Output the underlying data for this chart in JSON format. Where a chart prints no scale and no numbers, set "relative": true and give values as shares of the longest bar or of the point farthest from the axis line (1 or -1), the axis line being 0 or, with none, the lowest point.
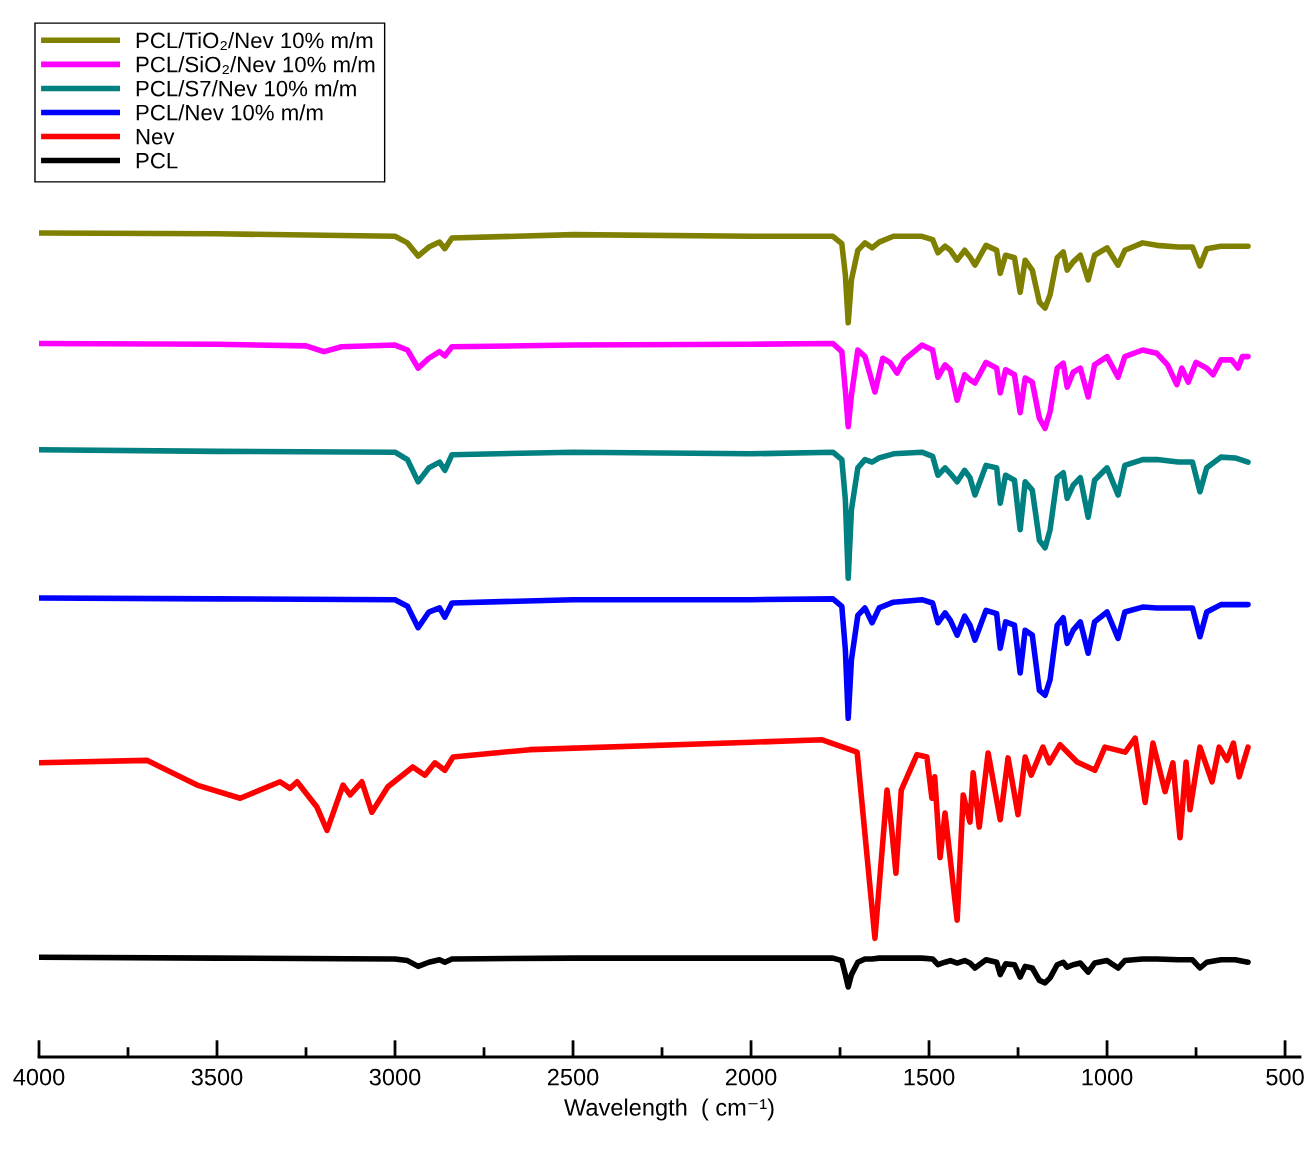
{
  "chart_data": {
    "type": "line",
    "relative": true,
    "xlabel": "Wavelength  ( cm⁻¹)",
    "legend": "top left",
    "grid": false,
    "marker": "none",
    "line_style": "solid",
    "xlim": [
      4000,
      458
    ],
    "xticks": [
      4000,
      {
        "value": 3750,
        "label": null
      },
      3500,
      {
        "value": 3250,
        "label": null
      },
      3000,
      {
        "value": 2750,
        "label": null
      },
      2500,
      {
        "value": 2250,
        "label": null
      },
      2000,
      {
        "value": 1750,
        "label": null
      },
      1500,
      {
        "value": 1250,
        "label": null
      },
      1000,
      {
        "value": 750,
        "label": null
      },
      500
    ],
    "tick_labels": "x",
    "series": [
      {
        "name": "PCL/TiO₂/Nev 10% m/m",
        "color": "#808000",
        "x": [
          4000,
          3500,
          3000,
          2965,
          2935,
          2905,
          2875,
          2860,
          2840,
          2500,
          2000,
          1770,
          1745,
          1735,
          1727,
          1718,
          1700,
          1680,
          1660,
          1640,
          1600,
          1520,
          1490,
          1475,
          1455,
          1440,
          1421,
          1400,
          1385,
          1371,
          1340,
          1310,
          1300,
          1285,
          1260,
          1244,
          1230,
          1210,
          1190,
          1174,
          1160,
          1140,
          1123,
          1112,
          1095,
          1075,
          1053,
          1035,
          1000,
          969,
          950,
          900,
          860,
          800,
          760,
          739,
          720,
          680,
          640,
          604
        ],
        "values": [
          1.0,
          0.999,
          0.996,
          0.988,
          0.972,
          0.983,
          0.989,
          0.981,
          0.994,
          0.998,
          0.996,
          0.996,
          0.987,
          0.949,
          0.891,
          0.943,
          0.979,
          0.988,
          0.982,
          0.989,
          0.996,
          0.996,
          0.992,
          0.976,
          0.984,
          0.979,
          0.967,
          0.979,
          0.971,
          0.961,
          0.985,
          0.979,
          0.951,
          0.973,
          0.97,
          0.928,
          0.967,
          0.955,
          0.916,
          0.909,
          0.925,
          0.97,
          0.977,
          0.955,
          0.965,
          0.973,
          0.943,
          0.973,
          0.982,
          0.961,
          0.979,
          0.988,
          0.985,
          0.983,
          0.983,
          0.96,
          0.981,
          0.984,
          0.984,
          0.984
        ]
      },
      {
        "name": "PCL/SiO₂/Nev 10% m/m",
        "color": "#ff00ff",
        "x": [
          4000,
          3500,
          3250,
          3200,
          3150,
          3000,
          2965,
          2935,
          2905,
          2875,
          2860,
          2840,
          2500,
          2000,
          1770,
          1745,
          1735,
          1727,
          1718,
          1700,
          1680,
          1652,
          1630,
          1610,
          1590,
          1570,
          1520,
          1490,
          1475,
          1455,
          1440,
          1421,
          1400,
          1385,
          1371,
          1340,
          1310,
          1300,
          1285,
          1260,
          1244,
          1230,
          1210,
          1190,
          1174,
          1160,
          1140,
          1123,
          1112,
          1095,
          1075,
          1053,
          1035,
          1000,
          969,
          950,
          900,
          860,
          830,
          804,
          790,
          772,
          750,
          720,
          702,
          680,
          650,
          632,
          620,
          604
        ],
        "values": [
          0.866,
          0.865,
          0.863,
          0.856,
          0.862,
          0.864,
          0.858,
          0.836,
          0.848,
          0.856,
          0.851,
          0.862,
          0.864,
          0.865,
          0.866,
          0.856,
          0.809,
          0.765,
          0.803,
          0.858,
          0.85,
          0.807,
          0.848,
          0.843,
          0.83,
          0.846,
          0.864,
          0.858,
          0.825,
          0.84,
          0.834,
          0.797,
          0.828,
          0.822,
          0.818,
          0.843,
          0.836,
          0.806,
          0.834,
          0.828,
          0.782,
          0.824,
          0.819,
          0.775,
          0.763,
          0.783,
          0.836,
          0.842,
          0.813,
          0.831,
          0.836,
          0.801,
          0.84,
          0.85,
          0.825,
          0.85,
          0.858,
          0.854,
          0.84,
          0.816,
          0.836,
          0.819,
          0.843,
          0.836,
          0.828,
          0.846,
          0.846,
          0.836,
          0.85,
          0.85
        ]
      },
      {
        "name": "PCL/S7/Nev 10% m/m",
        "color": "#008080",
        "x": [
          4000,
          3500,
          3000,
          2965,
          2935,
          2905,
          2875,
          2860,
          2840,
          2500,
          2000,
          1770,
          1745,
          1735,
          1727,
          1718,
          1700,
          1680,
          1660,
          1640,
          1600,
          1520,
          1490,
          1475,
          1455,
          1440,
          1421,
          1400,
          1385,
          1371,
          1340,
          1310,
          1300,
          1285,
          1260,
          1244,
          1230,
          1210,
          1190,
          1174,
          1160,
          1140,
          1123,
          1112,
          1095,
          1075,
          1053,
          1035,
          1000,
          969,
          950,
          900,
          860,
          800,
          760,
          739,
          720,
          680,
          640,
          604
        ],
        "values": [
          0.737,
          0.735,
          0.734,
          0.725,
          0.698,
          0.715,
          0.722,
          0.712,
          0.731,
          0.734,
          0.732,
          0.734,
          0.725,
          0.676,
          0.581,
          0.664,
          0.715,
          0.725,
          0.722,
          0.727,
          0.732,
          0.734,
          0.729,
          0.706,
          0.715,
          0.708,
          0.698,
          0.712,
          0.703,
          0.682,
          0.718,
          0.715,
          0.672,
          0.706,
          0.7,
          0.64,
          0.698,
          0.688,
          0.627,
          0.618,
          0.64,
          0.703,
          0.709,
          0.678,
          0.694,
          0.703,
          0.655,
          0.7,
          0.715,
          0.682,
          0.718,
          0.725,
          0.725,
          0.722,
          0.722,
          0.686,
          0.715,
          0.728,
          0.727,
          0.722
        ]
      },
      {
        "name": "PCL/Nev 10% m/m",
        "color": "#0000ff",
        "x": [
          4000,
          3500,
          3000,
          2965,
          2935,
          2905,
          2875,
          2860,
          2840,
          2500,
          2000,
          1770,
          1745,
          1735,
          1727,
          1718,
          1700,
          1680,
          1660,
          1640,
          1600,
          1520,
          1490,
          1475,
          1455,
          1440,
          1421,
          1400,
          1385,
          1371,
          1340,
          1310,
          1300,
          1285,
          1260,
          1244,
          1230,
          1210,
          1190,
          1174,
          1160,
          1140,
          1123,
          1112,
          1095,
          1075,
          1053,
          1035,
          1000,
          969,
          950,
          900,
          860,
          800,
          760,
          739,
          720,
          680,
          640,
          604
        ],
        "values": [
          0.557,
          0.556,
          0.555,
          0.547,
          0.521,
          0.54,
          0.545,
          0.534,
          0.551,
          0.555,
          0.555,
          0.556,
          0.547,
          0.494,
          0.411,
          0.482,
          0.536,
          0.545,
          0.527,
          0.545,
          0.552,
          0.555,
          0.551,
          0.527,
          0.539,
          0.53,
          0.512,
          0.535,
          0.524,
          0.506,
          0.542,
          0.538,
          0.496,
          0.528,
          0.524,
          0.466,
          0.518,
          0.512,
          0.445,
          0.439,
          0.458,
          0.524,
          0.533,
          0.502,
          0.518,
          0.528,
          0.49,
          0.528,
          0.54,
          0.508,
          0.54,
          0.546,
          0.545,
          0.545,
          0.545,
          0.51,
          0.54,
          0.549,
          0.549,
          0.549
        ]
      },
      {
        "name": "Nev",
        "color": "#ff0000",
        "x": [
          4000,
          3697,
          3556,
          3435,
          3323,
          3295,
          3275,
          3219,
          3191,
          3146,
          3126,
          3093,
          3065,
          3020,
          2950,
          2916,
          2888,
          2860,
          2837,
          2621,
          2000,
          1800,
          1702,
          1652,
          1618,
          1606,
          1593,
          1578,
          1534,
          1506,
          1492,
          1484,
          1469,
          1455,
          1421,
          1404,
          1385,
          1376,
          1359,
          1334,
          1300,
          1278,
          1250,
          1230,
          1213,
          1180,
          1162,
          1132,
          1084,
          1034,
          1006,
          949,
          921,
          893,
          871,
          837,
          815,
          795,
          778,
          767,
          739,
          705,
          685,
          663,
          645,
          629,
          604
        ],
        "values": [
          0.357,
          0.36,
          0.33,
          0.314,
          0.334,
          0.326,
          0.334,
          0.303,
          0.275,
          0.33,
          0.318,
          0.334,
          0.297,
          0.328,
          0.352,
          0.342,
          0.357,
          0.348,
          0.364,
          0.373,
          0.382,
          0.385,
          0.37,
          0.144,
          0.324,
          0.282,
          0.223,
          0.324,
          0.367,
          0.364,
          0.314,
          0.34,
          0.242,
          0.296,
          0.166,
          0.318,
          0.285,
          0.345,
          0.279,
          0.369,
          0.288,
          0.363,
          0.294,
          0.364,
          0.342,
          0.376,
          0.357,
          0.379,
          0.358,
          0.348,
          0.376,
          0.37,
          0.387,
          0.309,
          0.381,
          0.322,
          0.357,
          0.266,
          0.358,
          0.3,
          0.376,
          0.334,
          0.376,
          0.36,
          0.381,
          0.34,
          0.376
        ]
      },
      {
        "name": "PCL",
        "color": "#000000",
        "x": [
          4000,
          3500,
          3000,
          2965,
          2935,
          2905,
          2875,
          2860,
          2840,
          2500,
          2000,
          1770,
          1745,
          1735,
          1727,
          1718,
          1700,
          1680,
          1660,
          1640,
          1600,
          1520,
          1490,
          1475,
          1455,
          1440,
          1421,
          1400,
          1385,
          1371,
          1340,
          1310,
          1300,
          1285,
          1260,
          1244,
          1230,
          1210,
          1190,
          1174,
          1160,
          1140,
          1123,
          1112,
          1095,
          1075,
          1053,
          1035,
          1000,
          969,
          950,
          900,
          860,
          800,
          760,
          739,
          720,
          680,
          640,
          604
        ],
        "values": [
          0.121,
          0.12,
          0.119,
          0.117,
          0.11,
          0.115,
          0.118,
          0.115,
          0.119,
          0.12,
          0.12,
          0.12,
          0.117,
          0.1,
          0.085,
          0.1,
          0.115,
          0.119,
          0.119,
          0.12,
          0.12,
          0.12,
          0.119,
          0.112,
          0.115,
          0.117,
          0.114,
          0.117,
          0.114,
          0.108,
          0.118,
          0.115,
          0.1,
          0.113,
          0.112,
          0.097,
          0.11,
          0.108,
          0.093,
          0.09,
          0.096,
          0.112,
          0.115,
          0.109,
          0.112,
          0.114,
          0.103,
          0.114,
          0.117,
          0.108,
          0.117,
          0.119,
          0.119,
          0.118,
          0.118,
          0.108,
          0.115,
          0.118,
          0.118,
          0.115
        ]
      }
    ]
  }
}
